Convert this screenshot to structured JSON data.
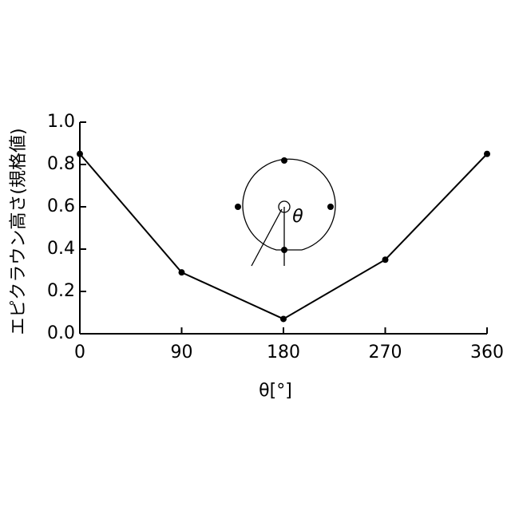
{
  "chart_data": {
    "type": "line",
    "x_label": "θ[°]",
    "y_label": "エピクラウン高さ(規格値)",
    "annotation": "θ",
    "x": [
      0,
      90,
      180,
      270,
      360
    ],
    "series": [
      {
        "name": null,
        "color": "#000000",
        "values": [
          0.85,
          0.29,
          0.07,
          0.35,
          0.85
        ]
      }
    ],
    "xlim": [
      0,
      360
    ],
    "xticks": [
      0,
      90,
      180,
      270,
      360
    ],
    "ylim": [
      0,
      1
    ],
    "yticks": [
      {
        "value": 0,
        "label": "0.0"
      },
      0.2,
      0.4,
      0.6,
      0.8,
      {
        "value": 1,
        "label": "1.0"
      }
    ]
  }
}
